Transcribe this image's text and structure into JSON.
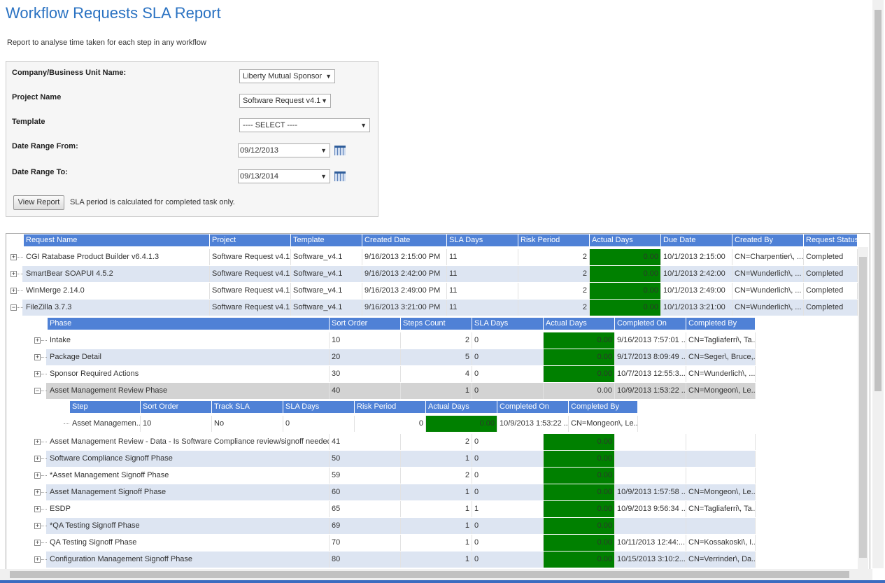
{
  "header": {
    "title": "Workflow Requests SLA Report",
    "description": "Report to analyse time taken for each step in any workflow"
  },
  "filters": {
    "fields": [
      {
        "label": "Company/Business Unit Name:",
        "value": "Liberty Mutual Sponsor"
      },
      {
        "label": "Project Name",
        "value": "Software Request v4.1"
      },
      {
        "label": "Template",
        "value": "---- SELECT ----"
      },
      {
        "label": "Date Range From:",
        "value": "09/12/2013"
      },
      {
        "label": "Date Range To:",
        "value": "09/13/2014"
      }
    ],
    "button": "View Report",
    "note": "SLA period is calculated for completed task only."
  },
  "requests": {
    "columns": [
      "Request Name",
      "Project",
      "Template",
      "Created Date",
      "SLA Days",
      "Risk Period",
      "Actual Days",
      "Due Date",
      "Created By",
      "Request Status"
    ],
    "rows": [
      [
        "CGI Ratabase Product Builder v6.4.1.3",
        "Software Request v4.1",
        "Software_v4.1",
        "9/16/2013 2:15:00 PM",
        "11",
        "2",
        "0.00",
        "10/1/2013 2:15:00",
        "CN=Charpentier\\, ...",
        "Completed"
      ],
      [
        "SmartBear SOAPUI 4.5.2",
        "Software Request v4.1",
        "Software_v4.1",
        "9/16/2013 2:42:00 PM",
        "11",
        "2",
        "0.00",
        "10/1/2013 2:42:00",
        "CN=Wunderlich\\, ...",
        "Completed"
      ],
      [
        "WinMerge 2.14.0",
        "Software Request v4.1",
        "Software_v4.1",
        "9/16/2013 2:49:00 PM",
        "11",
        "2",
        "0.00",
        "10/1/2013 2:49:00",
        "CN=Wunderlich\\, ...",
        "Completed"
      ],
      [
        "FileZilla 3.7.3",
        "Software Request v4.1",
        "Software_v4.1",
        "9/16/2013 3:21:00 PM",
        "11",
        "2",
        "0.00",
        "10/1/2013 3:21:00",
        "CN=Wunderlich\\, ...",
        "Completed"
      ]
    ]
  },
  "phases": {
    "columns": [
      "Phase",
      "Sort Order",
      "Steps Count",
      "SLA Days",
      "Actual Days",
      "Completed On",
      "Completed By"
    ],
    "rows": [
      [
        "Intake",
        "10",
        "2",
        "0",
        "0.00",
        "9/16/2013 7:57:01 ...",
        "CN=Tagliaferri\\, Ta..."
      ],
      [
        "Package Detail",
        "20",
        "5",
        "0",
        "0.00",
        "9/17/2013 8:09:49 ...",
        "CN=Seger\\, Bruce,..."
      ],
      [
        "Sponsor Required Actions",
        "30",
        "4",
        "0",
        "0.00",
        "10/7/2013 12:55:3...",
        "CN=Wunderlich\\, ..."
      ],
      [
        "Asset Management Review Phase",
        "40",
        "1",
        "0",
        "0.00",
        "10/9/2013 1:53:22 ...",
        "CN=Mongeon\\, Le..."
      ],
      [
        "Asset Management Review - Data - Is Software Compliance review/signoff needed?",
        "41",
        "2",
        "0",
        "0.00",
        null,
        null
      ],
      [
        "Software Compliance Signoff Phase",
        "50",
        "1",
        "0",
        "0.00",
        null,
        null
      ],
      [
        "*Asset Management Signoff Phase",
        "59",
        "2",
        "0",
        "0.00",
        null,
        null
      ],
      [
        "Asset Management Signoff Phase",
        "60",
        "1",
        "0",
        "0.00",
        "10/9/2013 1:57:58 ...",
        "CN=Mongeon\\, Le..."
      ],
      [
        "ESDP",
        "65",
        "1",
        "1",
        "0.00",
        "10/9/2013 9:56:34 ...",
        "CN=Tagliaferri\\, Ta..."
      ],
      [
        "*QA Testing Signoff Phase",
        "69",
        "1",
        "0",
        "0.00",
        null,
        null
      ],
      [
        "QA Testing Signoff Phase",
        "70",
        "1",
        "0",
        "0.00",
        "10/11/2013 12:44:...",
        "CN=Kossakoski\\, I..."
      ],
      [
        "Configuration Management Signoff Phase",
        "80",
        "1",
        "0",
        "0.00",
        "10/15/2013 3:10:2...",
        "CN=Verrinder\\, Da..."
      ]
    ]
  },
  "steps": {
    "columns": [
      "Step",
      "Sort Order",
      "Track SLA",
      "SLA Days",
      "Risk Period",
      "Actual Days",
      "Completed On",
      "Completed By"
    ],
    "rows": [
      [
        "Asset Managemen...",
        "10",
        "No",
        "0",
        "0",
        "0.00",
        "10/9/2013 1:53:22 ...",
        "CN=Mongeon\\, Le..."
      ]
    ]
  }
}
